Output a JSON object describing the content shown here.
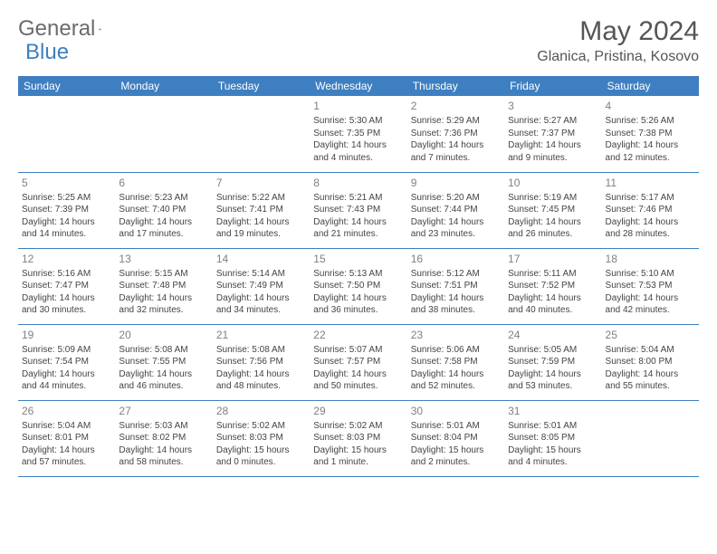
{
  "brand": {
    "part1": "General",
    "part2": "Blue"
  },
  "title": "May 2024",
  "location": "Glanica, Pristina, Kosovo",
  "colors": {
    "header_bg": "#3e7fc1",
    "header_text": "#ffffff",
    "row_border": "#3e7fc1",
    "daynum": "#808080",
    "body_text": "#444444",
    "brand_gray": "#6b6b6b",
    "brand_blue": "#3e7fc1"
  },
  "typography": {
    "month_title_size": 30,
    "location_size": 16,
    "weekday_size": 12,
    "daynum_size": 12,
    "cell_size": 10
  },
  "weekdays": [
    "Sunday",
    "Monday",
    "Tuesday",
    "Wednesday",
    "Thursday",
    "Friday",
    "Saturday"
  ],
  "weeks": [
    [
      null,
      null,
      null,
      {
        "n": "1",
        "sr": "5:30 AM",
        "ss": "7:35 PM",
        "dl": "14 hours and 4 minutes."
      },
      {
        "n": "2",
        "sr": "5:29 AM",
        "ss": "7:36 PM",
        "dl": "14 hours and 7 minutes."
      },
      {
        "n": "3",
        "sr": "5:27 AM",
        "ss": "7:37 PM",
        "dl": "14 hours and 9 minutes."
      },
      {
        "n": "4",
        "sr": "5:26 AM",
        "ss": "7:38 PM",
        "dl": "14 hours and 12 minutes."
      }
    ],
    [
      {
        "n": "5",
        "sr": "5:25 AM",
        "ss": "7:39 PM",
        "dl": "14 hours and 14 minutes."
      },
      {
        "n": "6",
        "sr": "5:23 AM",
        "ss": "7:40 PM",
        "dl": "14 hours and 17 minutes."
      },
      {
        "n": "7",
        "sr": "5:22 AM",
        "ss": "7:41 PM",
        "dl": "14 hours and 19 minutes."
      },
      {
        "n": "8",
        "sr": "5:21 AM",
        "ss": "7:43 PM",
        "dl": "14 hours and 21 minutes."
      },
      {
        "n": "9",
        "sr": "5:20 AM",
        "ss": "7:44 PM",
        "dl": "14 hours and 23 minutes."
      },
      {
        "n": "10",
        "sr": "5:19 AM",
        "ss": "7:45 PM",
        "dl": "14 hours and 26 minutes."
      },
      {
        "n": "11",
        "sr": "5:17 AM",
        "ss": "7:46 PM",
        "dl": "14 hours and 28 minutes."
      }
    ],
    [
      {
        "n": "12",
        "sr": "5:16 AM",
        "ss": "7:47 PM",
        "dl": "14 hours and 30 minutes."
      },
      {
        "n": "13",
        "sr": "5:15 AM",
        "ss": "7:48 PM",
        "dl": "14 hours and 32 minutes."
      },
      {
        "n": "14",
        "sr": "5:14 AM",
        "ss": "7:49 PM",
        "dl": "14 hours and 34 minutes."
      },
      {
        "n": "15",
        "sr": "5:13 AM",
        "ss": "7:50 PM",
        "dl": "14 hours and 36 minutes."
      },
      {
        "n": "16",
        "sr": "5:12 AM",
        "ss": "7:51 PM",
        "dl": "14 hours and 38 minutes."
      },
      {
        "n": "17",
        "sr": "5:11 AM",
        "ss": "7:52 PM",
        "dl": "14 hours and 40 minutes."
      },
      {
        "n": "18",
        "sr": "5:10 AM",
        "ss": "7:53 PM",
        "dl": "14 hours and 42 minutes."
      }
    ],
    [
      {
        "n": "19",
        "sr": "5:09 AM",
        "ss": "7:54 PM",
        "dl": "14 hours and 44 minutes."
      },
      {
        "n": "20",
        "sr": "5:08 AM",
        "ss": "7:55 PM",
        "dl": "14 hours and 46 minutes."
      },
      {
        "n": "21",
        "sr": "5:08 AM",
        "ss": "7:56 PM",
        "dl": "14 hours and 48 minutes."
      },
      {
        "n": "22",
        "sr": "5:07 AM",
        "ss": "7:57 PM",
        "dl": "14 hours and 50 minutes."
      },
      {
        "n": "23",
        "sr": "5:06 AM",
        "ss": "7:58 PM",
        "dl": "14 hours and 52 minutes."
      },
      {
        "n": "24",
        "sr": "5:05 AM",
        "ss": "7:59 PM",
        "dl": "14 hours and 53 minutes."
      },
      {
        "n": "25",
        "sr": "5:04 AM",
        "ss": "8:00 PM",
        "dl": "14 hours and 55 minutes."
      }
    ],
    [
      {
        "n": "26",
        "sr": "5:04 AM",
        "ss": "8:01 PM",
        "dl": "14 hours and 57 minutes."
      },
      {
        "n": "27",
        "sr": "5:03 AM",
        "ss": "8:02 PM",
        "dl": "14 hours and 58 minutes."
      },
      {
        "n": "28",
        "sr": "5:02 AM",
        "ss": "8:03 PM",
        "dl": "15 hours and 0 minutes."
      },
      {
        "n": "29",
        "sr": "5:02 AM",
        "ss": "8:03 PM",
        "dl": "15 hours and 1 minute."
      },
      {
        "n": "30",
        "sr": "5:01 AM",
        "ss": "8:04 PM",
        "dl": "15 hours and 2 minutes."
      },
      {
        "n": "31",
        "sr": "5:01 AM",
        "ss": "8:05 PM",
        "dl": "15 hours and 4 minutes."
      },
      null
    ]
  ],
  "labels": {
    "sunrise": "Sunrise:",
    "sunset": "Sunset:",
    "daylight": "Daylight:"
  }
}
